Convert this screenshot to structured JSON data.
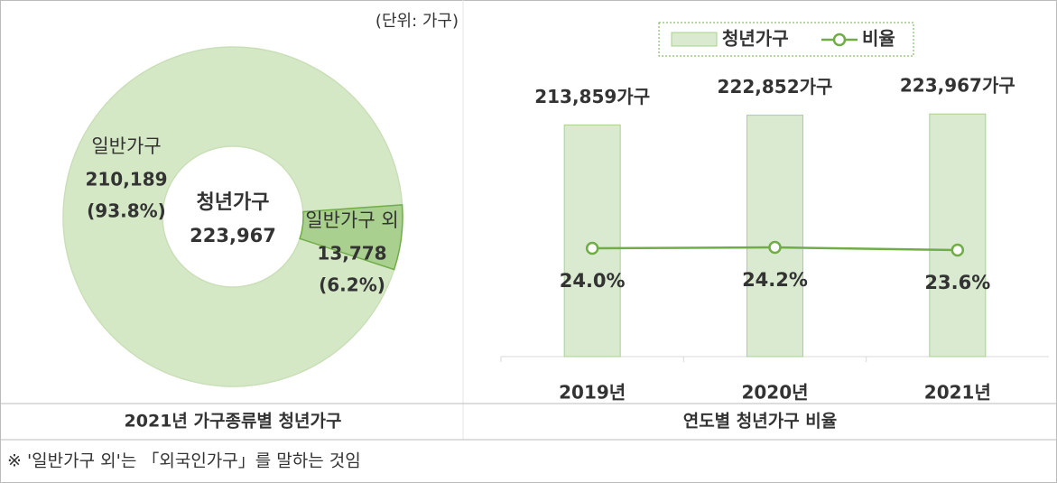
{
  "chart_data": [
    {
      "type": "pie",
      "title": "2021년 가구종류별 청년가구",
      "unit": "(단위: 가구)",
      "categories": [
        "일반가구",
        "일반가구 외"
      ],
      "values": [
        210189,
        13778
      ],
      "value_labels": [
        "210,189",
        "13,778"
      ],
      "percent_labels": [
        "(93.8%)",
        "(6.2%)"
      ],
      "colors": [
        "#d5e8c6",
        "#a9d08e"
      ],
      "center_label": "청년가구",
      "center_value": "223,967"
    },
    {
      "type": "bar",
      "title": "연도별 청년가구 비율",
      "categories": [
        "2019년",
        "2020년",
        "2021년"
      ],
      "series": [
        {
          "name": "청년가구",
          "color": "#d9ead0",
          "values": [
            213859,
            222852,
            223967
          ],
          "value_labels": [
            "213,859가구",
            "222,852가구",
            "223,967가구"
          ]
        },
        {
          "name": "비율",
          "type": "line",
          "axis": "y2",
          "color": "#70ad47",
          "values": [
            24.0,
            24.2,
            23.6
          ],
          "value_labels": [
            "24.0%",
            "24.2%",
            "23.6%"
          ]
        }
      ],
      "ylim": [
        0,
        250000
      ],
      "y2lim": [
        0,
        60
      ],
      "legend": "top"
    }
  ],
  "footnote": "※ '일반가구 외'는 「외국인가구」를 말하는 것임"
}
